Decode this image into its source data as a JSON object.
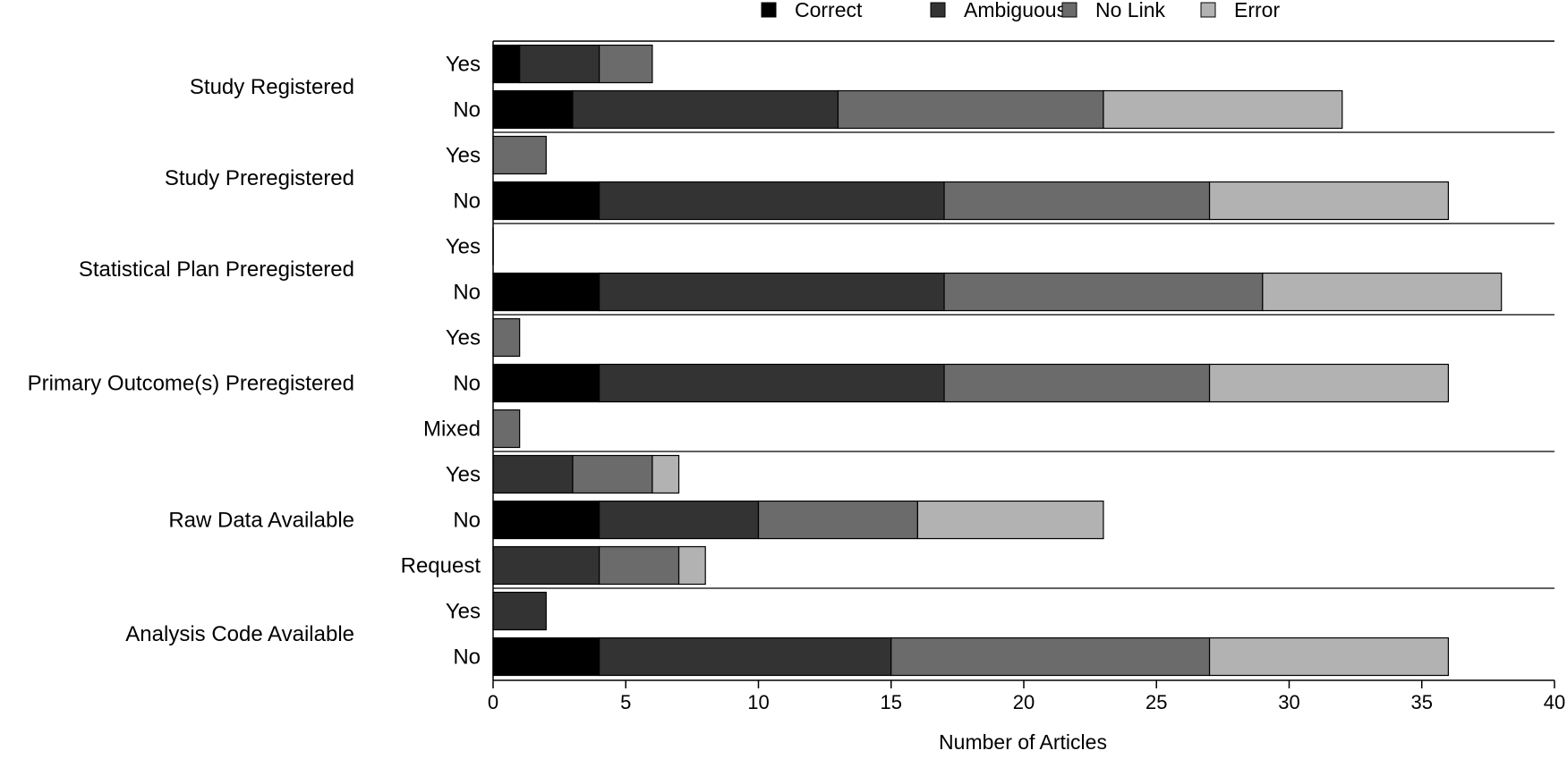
{
  "chart_data": {
    "type": "bar",
    "orientation": "horizontal",
    "stacked": true,
    "xlabel": "Number of Articles",
    "xlim": [
      0,
      40
    ],
    "xticks": [
      0,
      5,
      10,
      15,
      20,
      25,
      30,
      35,
      40
    ],
    "grid": false,
    "legend_position": "top",
    "series": [
      {
        "name": "Correct",
        "color": "#000000"
      },
      {
        "name": "Ambiguous",
        "color": "#333333"
      },
      {
        "name": "No Link",
        "color": "#6b6b6b"
      },
      {
        "name": "Error",
        "color": "#b2b2b2"
      }
    ],
    "groups": [
      {
        "label": "Study Registered",
        "rows": [
          {
            "label": "Yes",
            "values": [
              1,
              3,
              2,
              0
            ]
          },
          {
            "label": "No",
            "values": [
              3,
              10,
              10,
              9
            ]
          }
        ]
      },
      {
        "label": "Study Preregistered",
        "rows": [
          {
            "label": "Yes",
            "values": [
              0,
              0,
              2,
              0
            ]
          },
          {
            "label": "No",
            "values": [
              4,
              13,
              10,
              9
            ]
          }
        ]
      },
      {
        "label": "Statistical Plan Preregistered",
        "rows": [
          {
            "label": "Yes",
            "values": [
              0,
              0,
              0,
              0
            ]
          },
          {
            "label": "No",
            "values": [
              4,
              13,
              12,
              9
            ]
          }
        ]
      },
      {
        "label": "Primary Outcome(s) Preregistered",
        "rows": [
          {
            "label": "Yes",
            "values": [
              0,
              0,
              1,
              0
            ]
          },
          {
            "label": "No",
            "values": [
              4,
              13,
              10,
              9
            ]
          },
          {
            "label": "Mixed",
            "values": [
              0,
              0,
              1,
              0
            ]
          }
        ]
      },
      {
        "label": "Raw Data Available",
        "rows": [
          {
            "label": "Yes",
            "values": [
              0,
              3,
              3,
              1
            ]
          },
          {
            "label": "No",
            "values": [
              4,
              6,
              6,
              7
            ]
          },
          {
            "label": "Request",
            "values": [
              0,
              4,
              3,
              1
            ]
          }
        ]
      },
      {
        "label": "Analysis Code Available",
        "rows": [
          {
            "label": "Yes",
            "values": [
              0,
              2,
              0,
              0
            ]
          },
          {
            "label": "No",
            "values": [
              4,
              11,
              12,
              9
            ]
          }
        ]
      }
    ]
  }
}
